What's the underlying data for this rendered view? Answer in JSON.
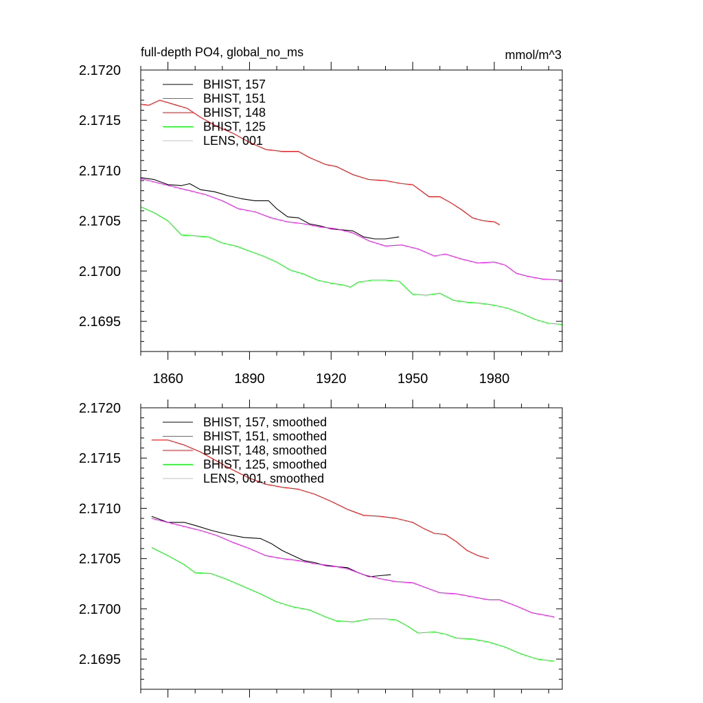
{
  "figure": {
    "title": "full-depth PO4, global_no_ms",
    "units": "mmol/m^3"
  },
  "chart_data": [
    {
      "type": "line",
      "title": "full-depth PO4, global_no_ms",
      "units": "mmol/m^3",
      "xlim": [
        1850,
        2005
      ],
      "ylim": [
        2.1692,
        2.172
      ],
      "x_tick_labels": [
        "1860",
        "1890",
        "1920",
        "1950",
        "1980"
      ],
      "y_tick_labels": [
        "2.1720",
        "2.1715",
        "2.1710",
        "2.1705",
        "2.1700",
        "2.1695"
      ],
      "grid": false,
      "legend_position": "top-left",
      "series": [
        {
          "name": "BHIST, 157",
          "color": "#000000",
          "x": [
            1850,
            1855,
            1860,
            1865,
            1868,
            1872,
            1877,
            1882,
            1887,
            1892,
            1897,
            1900,
            1904,
            1908,
            1912,
            1916,
            1920,
            1924,
            1928,
            1932,
            1936,
            1940,
            1945
          ],
          "y": [
            2.17093,
            2.17091,
            2.17086,
            2.17085,
            2.17087,
            2.17081,
            2.17079,
            2.17075,
            2.17072,
            2.1707,
            2.1707,
            2.17062,
            2.17054,
            2.17053,
            2.17047,
            2.17045,
            2.17042,
            2.17041,
            2.1704,
            2.17034,
            2.17032,
            2.17032,
            2.17034
          ]
        },
        {
          "name": "BHIST, 151",
          "color": "#ff00ff",
          "x": [
            1850,
            1856,
            1862,
            1868,
            1874,
            1880,
            1886,
            1892,
            1898,
            1904,
            1910,
            1916,
            1922,
            1928,
            1934,
            1940,
            1946,
            1952,
            1958,
            1962,
            1968,
            1974,
            1980,
            1984,
            1988,
            1992,
            1998,
            2005
          ],
          "y": [
            2.17092,
            2.17088,
            2.17084,
            2.1708,
            2.17076,
            2.1707,
            2.17062,
            2.17059,
            2.17053,
            2.17049,
            2.17047,
            2.17044,
            2.17042,
            2.17038,
            2.1703,
            2.17025,
            2.17026,
            2.17022,
            2.17015,
            2.17017,
            2.17012,
            2.17008,
            2.17009,
            2.17006,
            2.16998,
            2.16995,
            2.16992,
            2.16991
          ]
        },
        {
          "name": "BHIST, 148",
          "color": "#ff0000",
          "x": [
            1850,
            1853,
            1857,
            1862,
            1867,
            1872,
            1878,
            1884,
            1890,
            1896,
            1902,
            1908,
            1912,
            1918,
            1922,
            1928,
            1934,
            1940,
            1946,
            1950,
            1956,
            1960,
            1964,
            1968,
            1972,
            1976,
            1980,
            1982
          ],
          "y": [
            2.17166,
            2.17165,
            2.1717,
            2.17166,
            2.17162,
            2.17153,
            2.17144,
            2.17137,
            2.17128,
            2.17121,
            2.17119,
            2.17119,
            2.17113,
            2.17106,
            2.17104,
            2.17096,
            2.17091,
            2.1709,
            2.17087,
            2.17086,
            2.17074,
            2.17074,
            2.17068,
            2.17061,
            2.17053,
            2.1705,
            2.17049,
            2.17046
          ]
        },
        {
          "name": "BHIST, 125",
          "color": "#00ff00",
          "x": [
            1850,
            1855,
            1860,
            1865,
            1870,
            1875,
            1880,
            1885,
            1890,
            1895,
            1900,
            1905,
            1910,
            1915,
            1920,
            1925,
            1927,
            1930,
            1935,
            1940,
            1945,
            1950,
            1955,
            1960,
            1965,
            1970,
            1975,
            1980,
            1985,
            1990,
            1995,
            2000,
            2005
          ],
          "y": [
            2.17064,
            2.17058,
            2.1705,
            2.17036,
            2.17035,
            2.17034,
            2.17028,
            2.17025,
            2.1702,
            2.17015,
            2.17009,
            2.17001,
            2.16997,
            2.16991,
            2.16988,
            2.16986,
            2.16984,
            2.16989,
            2.16991,
            2.16991,
            2.1699,
            2.16977,
            2.16976,
            2.16978,
            2.16971,
            2.16969,
            2.16968,
            2.16966,
            2.16963,
            2.16958,
            2.16952,
            2.16948,
            2.16947
          ]
        },
        {
          "name": "LENS, 001",
          "color": "#c0c0c0",
          "x": [],
          "y": []
        }
      ]
    },
    {
      "type": "line",
      "title": "",
      "xlim": [
        1850,
        2005
      ],
      "ylim": [
        2.1692,
        2.172
      ],
      "x_tick_labels": [],
      "y_tick_labels": [
        "2.1720",
        "2.1715",
        "2.1710",
        "2.1705",
        "2.1700",
        "2.1695"
      ],
      "grid": false,
      "legend_position": "top-left",
      "series": [
        {
          "name": "BHIST, 157, smoothed",
          "color": "#000000",
          "x": [
            1854,
            1860,
            1866,
            1870,
            1876,
            1882,
            1888,
            1894,
            1898,
            1902,
            1906,
            1910,
            1914,
            1918,
            1922,
            1926,
            1930,
            1934,
            1938,
            1942
          ],
          "y": [
            2.17092,
            2.17086,
            2.17086,
            2.17083,
            2.17078,
            2.17074,
            2.17071,
            2.1707,
            2.17065,
            2.17058,
            2.17053,
            2.17048,
            2.17046,
            2.17043,
            2.17042,
            2.17041,
            2.17036,
            2.17032,
            2.17033,
            2.17034
          ]
        },
        {
          "name": "BHIST, 151, smoothed",
          "color": "#ff00ff",
          "x": [
            1854,
            1860,
            1866,
            1872,
            1878,
            1884,
            1890,
            1896,
            1902,
            1908,
            1914,
            1920,
            1926,
            1932,
            1938,
            1944,
            1950,
            1956,
            1960,
            1966,
            1972,
            1978,
            1982,
            1988,
            1994,
            2002
          ],
          "y": [
            2.1709,
            2.17086,
            2.17082,
            2.17078,
            2.17073,
            2.17066,
            2.1706,
            2.17053,
            2.1705,
            2.17048,
            2.17045,
            2.17043,
            2.1704,
            2.17034,
            2.1703,
            2.17027,
            2.17026,
            2.1702,
            2.17016,
            2.17015,
            2.17012,
            2.17009,
            2.17009,
            2.17003,
            2.16996,
            2.16992
          ]
        },
        {
          "name": "BHIST, 148, smoothed",
          "color": "#ff0000",
          "x": [
            1854,
            1860,
            1866,
            1872,
            1878,
            1884,
            1890,
            1896,
            1902,
            1908,
            1914,
            1920,
            1926,
            1932,
            1938,
            1944,
            1950,
            1954,
            1958,
            1962,
            1966,
            1970,
            1974,
            1978
          ],
          "y": [
            2.17168,
            2.17168,
            2.17163,
            2.17156,
            2.17147,
            2.17138,
            2.1713,
            2.17124,
            2.17121,
            2.17119,
            2.17114,
            2.17107,
            2.17099,
            2.17093,
            2.17092,
            2.1709,
            2.17086,
            2.1708,
            2.17075,
            2.17074,
            2.17067,
            2.17058,
            2.17053,
            2.1705
          ]
        },
        {
          "name": "BHIST, 125, smoothed",
          "color": "#00ff00",
          "x": [
            1854,
            1860,
            1866,
            1870,
            1876,
            1882,
            1888,
            1894,
            1900,
            1906,
            1912,
            1918,
            1922,
            1928,
            1934,
            1940,
            1944,
            1948,
            1952,
            1958,
            1962,
            1966,
            1972,
            1978,
            1984,
            1990,
            1996,
            2002
          ],
          "y": [
            2.17061,
            2.17053,
            2.17044,
            2.17036,
            2.17035,
            2.17029,
            2.17022,
            2.17015,
            2.17007,
            2.17002,
            2.16999,
            2.16992,
            2.16988,
            2.16987,
            2.1699,
            2.1699,
            2.16989,
            2.16983,
            2.16976,
            2.16977,
            2.16975,
            2.16971,
            2.1697,
            2.16967,
            2.16962,
            2.16955,
            2.1695,
            2.16948
          ]
        },
        {
          "name": "LENS, 001, smoothed",
          "color": "#c0c0c0",
          "x": [],
          "y": []
        }
      ]
    }
  ]
}
